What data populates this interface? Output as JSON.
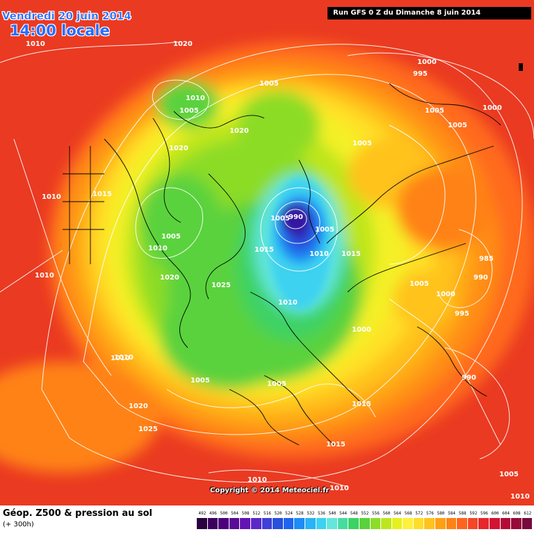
{
  "header": {
    "valid_date": "Vendredi 20 juin 2014",
    "valid_time": "14:00 locale",
    "run_info": "Run GFS 0 Z du Dimanche 8 juin 2014"
  },
  "copyright": "Copyright © 2014 Meteociel.fr",
  "legend": {
    "title": "Géop. Z500 & pression au sol",
    "subtitle": "(+ 300h)",
    "scale": [
      {
        "label": "492",
        "color": "#2a0040"
      },
      {
        "label": "496",
        "color": "#3b005c"
      },
      {
        "label": "500",
        "color": "#4d007a"
      },
      {
        "label": "504",
        "color": "#5a0a96"
      },
      {
        "label": "508",
        "color": "#6414b4"
      },
      {
        "label": "512",
        "color": "#5a28c8"
      },
      {
        "label": "516",
        "color": "#4040d8"
      },
      {
        "label": "520",
        "color": "#2850dc"
      },
      {
        "label": "524",
        "color": "#1e64f0"
      },
      {
        "label": "528",
        "color": "#1e8cf5"
      },
      {
        "label": "532",
        "color": "#28b4f5"
      },
      {
        "label": "536",
        "color": "#3cd2f0"
      },
      {
        "label": "540",
        "color": "#64e6dc"
      },
      {
        "label": "544",
        "color": "#46dca0"
      },
      {
        "label": "548",
        "color": "#3cd264"
      },
      {
        "label": "552",
        "color": "#5ad23c"
      },
      {
        "label": "556",
        "color": "#8cdc28"
      },
      {
        "label": "560",
        "color": "#bee61e"
      },
      {
        "label": "564",
        "color": "#e6f01e"
      },
      {
        "label": "568",
        "color": "#fff03c"
      },
      {
        "label": "572",
        "color": "#ffdc28"
      },
      {
        "label": "576",
        "color": "#ffc31e"
      },
      {
        "label": "580",
        "color": "#ffa014"
      },
      {
        "label": "584",
        "color": "#ff8214"
      },
      {
        "label": "588",
        "color": "#ff641e"
      },
      {
        "label": "592",
        "color": "#f54628"
      },
      {
        "label": "596",
        "color": "#e6282d"
      },
      {
        "label": "600",
        "color": "#d21432"
      },
      {
        "label": "604",
        "color": "#b40a37"
      },
      {
        "label": "608",
        "color": "#960a3c"
      },
      {
        "label": "612",
        "color": "#780a3c"
      }
    ]
  },
  "pressure_labels": [
    "1010",
    "1020",
    "1000",
    "995",
    "1010",
    "1005",
    "1005",
    "1000",
    "1005",
    "1020",
    "1005",
    "1020",
    "1015",
    "1010",
    "1005",
    "990",
    "1005",
    "1005",
    "1010",
    "1015",
    "1015",
    "1010",
    "1010",
    "985",
    "1020",
    "1025",
    "1005",
    "990",
    "1000",
    "1010",
    "995",
    "1010",
    "1000",
    "1005",
    "1005",
    "990",
    "1015",
    "1020",
    "1025",
    "1015",
    "1010",
    "1010",
    "1005",
    "1010",
    "1005",
    "1010"
  ]
}
